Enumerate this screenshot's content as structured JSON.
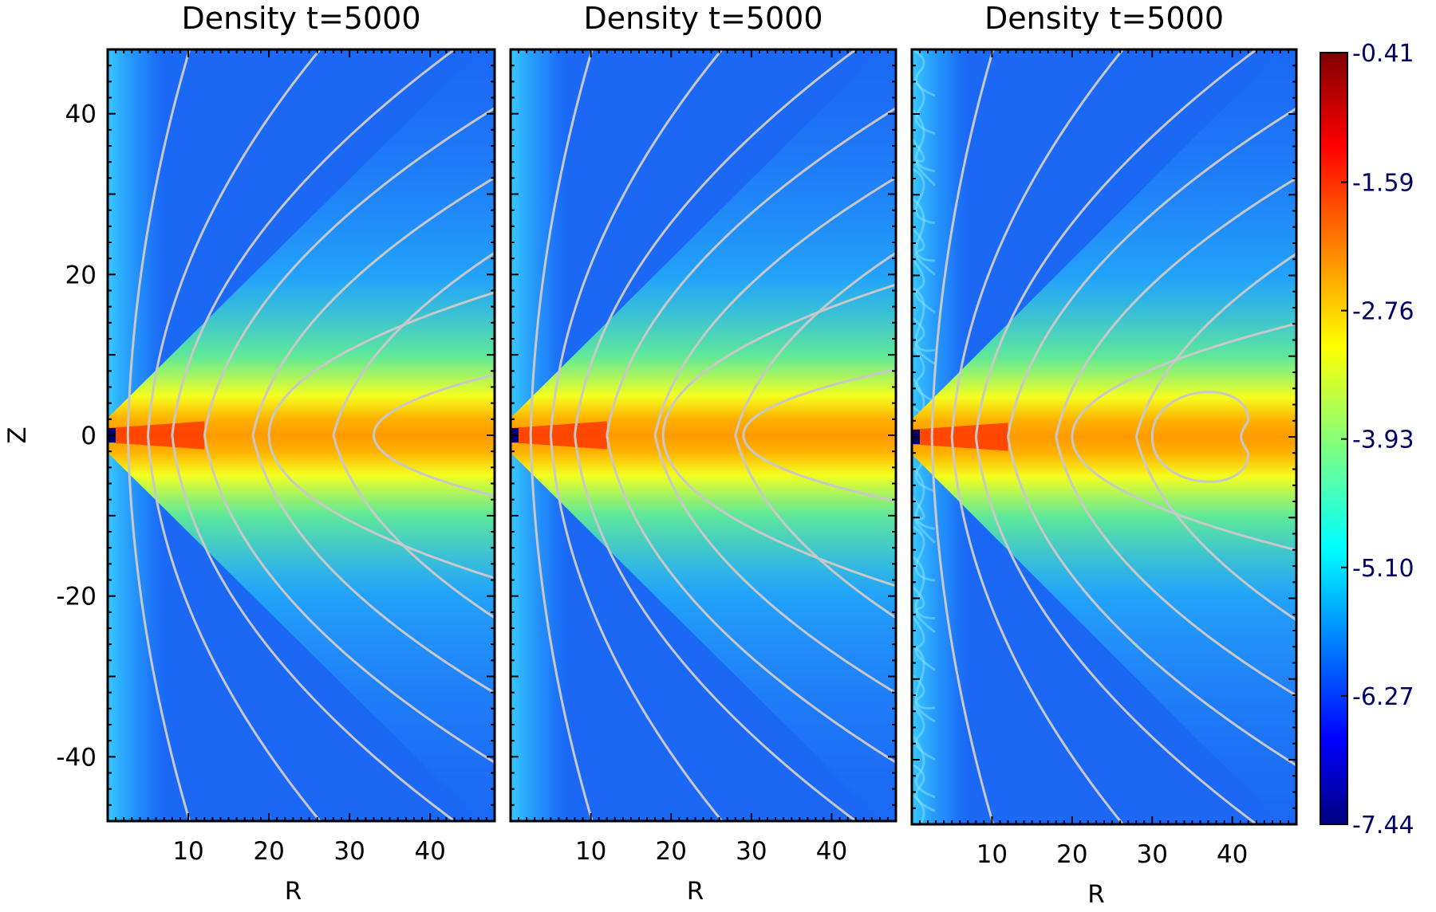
{
  "chart_data": {
    "type": "heatmap",
    "panels": [
      {
        "title": "Density t=5000",
        "xlabel": "R",
        "ylabel": "Z",
        "xlim": [
          0,
          48
        ],
        "ylim": [
          -48,
          48
        ],
        "xticks": [
          10,
          20,
          30,
          40
        ],
        "yticks": [
          40,
          20,
          0,
          -20,
          -40
        ],
        "field_lines_r0": [
          2.5,
          5,
          8,
          12,
          18,
          28
        ],
        "disk_contours": [
          {
            "r_start": 33,
            "height": 8.5
          },
          {
            "r_start": 20,
            "height": 19
          }
        ],
        "turbulent_axis": false
      },
      {
        "title": "Density t=5000",
        "xlabel": "R",
        "ylabel": "",
        "xlim": [
          0,
          48
        ],
        "ylim": [
          -48,
          48
        ],
        "xticks": [
          10,
          20,
          30,
          40
        ],
        "yticks": [],
        "field_lines_r0": [
          2.5,
          5,
          8,
          12,
          18,
          28
        ],
        "disk_contours": [
          {
            "r_start": 29,
            "height": 9
          },
          {
            "r_start": 19,
            "height": 20
          }
        ],
        "turbulent_axis": false
      },
      {
        "title": "Density t=5000",
        "xlabel": "R",
        "ylabel": "",
        "xlim": [
          0,
          48
        ],
        "ylim": [
          -48,
          48
        ],
        "xticks": [
          10,
          20,
          30,
          40
        ],
        "yticks": [],
        "field_lines_r0": [
          2.5,
          5,
          8,
          12,
          18,
          28
        ],
        "disk_contours": [
          {
            "r_start": 20,
            "height": 15
          }
        ],
        "inner_contour": {
          "r_start": 30,
          "r_end": 42,
          "height": 5
        },
        "turbulent_axis": true
      }
    ],
    "colorbar": {
      "ticks": [
        "-0.41",
        "-1.59",
        "-2.76",
        "-3.93",
        "-5.10",
        "-6.27",
        "-7.44"
      ],
      "min": -7.44,
      "max": -0.41,
      "colormap": "jet"
    },
    "contour_color": "#c8c8c8"
  }
}
